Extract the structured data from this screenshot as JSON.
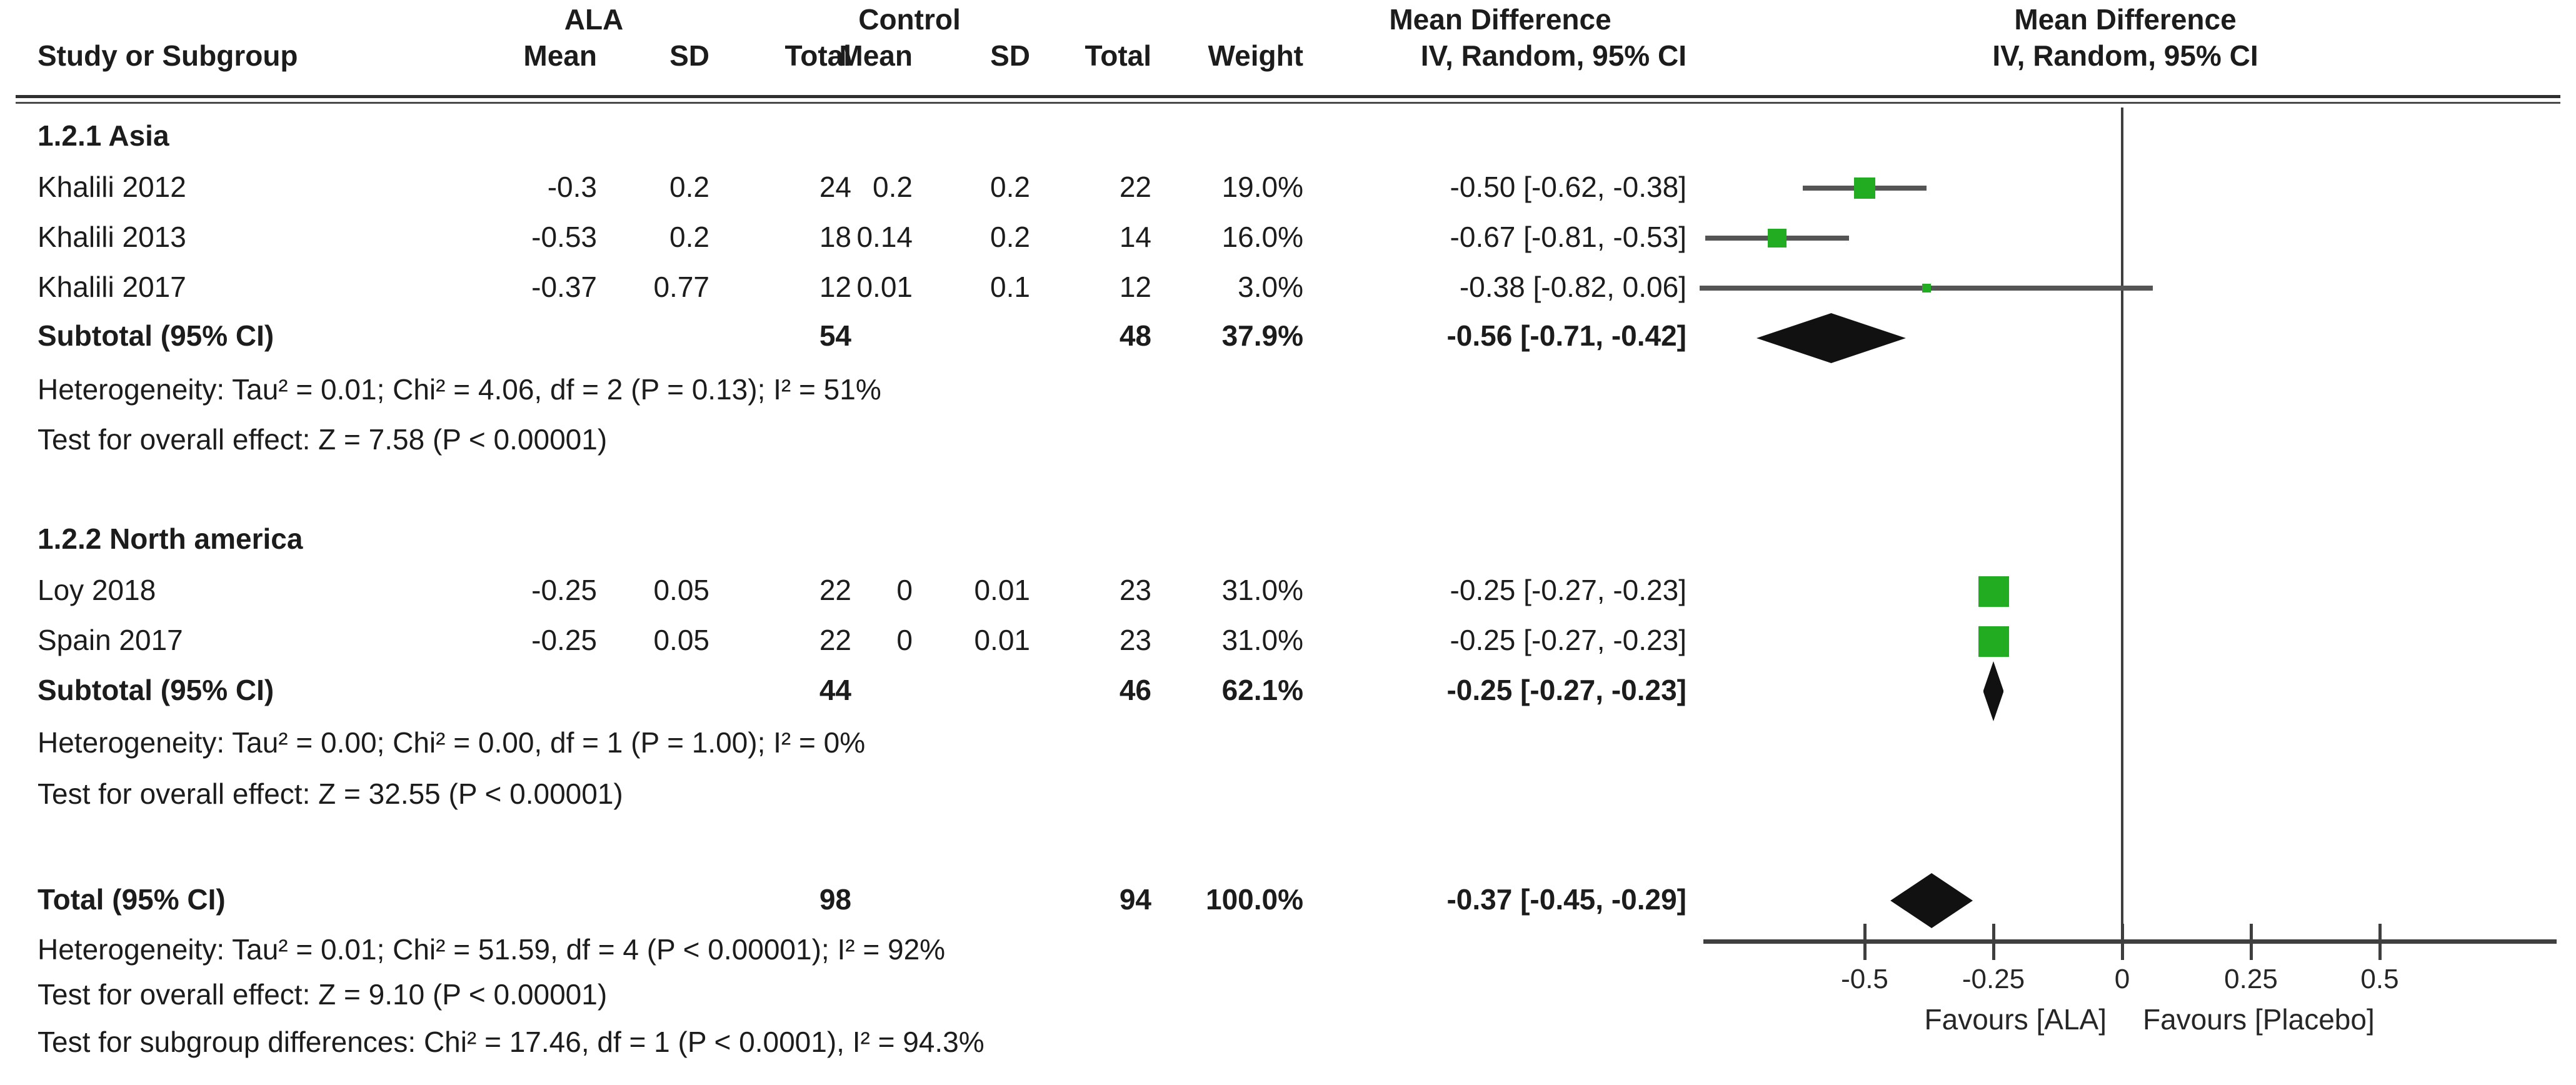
{
  "group_headers": {
    "ala": "ALA",
    "control": "Control",
    "md_left": "Mean Difference",
    "md_right": "Mean Difference"
  },
  "labels": {
    "study_col": "Study or Subgroup",
    "mean": "Mean",
    "sd": "SD",
    "total": "Total",
    "weight": "Weight",
    "iv": "IV, Random, 95% CI"
  },
  "sections": [
    {
      "title": "1.2.1 Asia",
      "rows": [
        {
          "study": "Khalili 2012",
          "m1": "-0.3",
          "sd1": "0.2",
          "n1": "24",
          "m2": "0.2",
          "sd2": "0.2",
          "n2": "22",
          "w": "19.0%",
          "ci": "-0.50 [-0.62, -0.38]"
        },
        {
          "study": "Khalili 2013",
          "m1": "-0.53",
          "sd1": "0.2",
          "n1": "18",
          "m2": "0.14",
          "sd2": "0.2",
          "n2": "14",
          "w": "16.0%",
          "ci": "-0.67 [-0.81, -0.53]"
        },
        {
          "study": "Khalili 2017",
          "m1": "-0.37",
          "sd1": "0.77",
          "n1": "12",
          "m2": "0.01",
          "sd2": "0.1",
          "n2": "12",
          "w": "3.0%",
          "ci": "-0.38 [-0.82, 0.06]"
        }
      ],
      "subtotal": {
        "label": "Subtotal (95% CI)",
        "n1": "54",
        "n2": "48",
        "w": "37.9%",
        "ci": "-0.56 [-0.71, -0.42]"
      },
      "heterogeneity": "Heterogeneity: Tau² = 0.01; Chi² = 4.06, df = 2 (P = 0.13); I² = 51%",
      "overall": "Test for overall effect: Z = 7.58 (P < 0.00001)"
    },
    {
      "title": "1.2.2 North america",
      "rows": [
        {
          "study": "Loy 2018",
          "m1": "-0.25",
          "sd1": "0.05",
          "n1": "22",
          "m2": "0",
          "sd2": "0.01",
          "n2": "23",
          "w": "31.0%",
          "ci": "-0.25 [-0.27, -0.23]"
        },
        {
          "study": "Spain 2017",
          "m1": "-0.25",
          "sd1": "0.05",
          "n1": "22",
          "m2": "0",
          "sd2": "0.01",
          "n2": "23",
          "w": "31.0%",
          "ci": "-0.25 [-0.27, -0.23]"
        }
      ],
      "subtotal": {
        "label": "Subtotal (95% CI)",
        "n1": "44",
        "n2": "46",
        "w": "62.1%",
        "ci": "-0.25 [-0.27, -0.23]"
      },
      "heterogeneity": "Heterogeneity: Tau² = 0.00; Chi² = 0.00, df = 1 (P = 1.00); I² = 0%",
      "overall": "Test for overall effect: Z = 32.55 (P < 0.00001)"
    }
  ],
  "total_row": {
    "label": "Total (95% CI)",
    "n1": "98",
    "n2": "94",
    "w": "100.0%",
    "ci": "-0.37 [-0.45, -0.29]"
  },
  "footer": {
    "heterogeneity": "Heterogeneity: Tau² = 0.01; Chi² = 51.59, df = 4 (P < 0.00001); I² = 92%",
    "overall": "Test for overall effect: Z = 9.10 (P < 0.00001)",
    "subgroup": "Test for subgroup differences: Chi² = 17.46, df = 1 (P < 0.0001), I² = 94.3%"
  },
  "axis": {
    "tick_labels": [
      "-0.5",
      "-0.25",
      "0",
      "0.25",
      "0.5"
    ],
    "favours_left": "Favours [ALA]",
    "favours_right": "Favours [Placebo]"
  },
  "colors": {
    "marker_green": "#22ac22",
    "diamond": "#111111",
    "ci_line": "#555555",
    "axis": "#3f3f3f"
  },
  "chart_data": {
    "type": "scatter",
    "subtype": "forest-plot",
    "effect_measure": "Mean Difference, IV, Random, 95% CI",
    "xlim": [
      -0.85,
      0.87
    ],
    "zero_line": 0,
    "axis_ticks": [
      -0.5,
      -0.25,
      0,
      0.25,
      0.5
    ],
    "points": [
      {
        "row": "k2012",
        "label": "Khalili 2012",
        "est": -0.5,
        "lo": -0.62,
        "hi": -0.38,
        "weight_pct": 19.0
      },
      {
        "row": "k2013",
        "label": "Khalili 2013",
        "est": -0.67,
        "lo": -0.81,
        "hi": -0.53,
        "weight_pct": 16.0
      },
      {
        "row": "k2017",
        "label": "Khalili 2017",
        "est": -0.38,
        "lo": -0.82,
        "hi": 0.06,
        "weight_pct": 3.0
      },
      {
        "row": "loy",
        "label": "Loy 2018",
        "est": -0.25,
        "lo": -0.27,
        "hi": -0.23,
        "weight_pct": 31.0
      },
      {
        "row": "spain",
        "label": "Spain 2017",
        "est": -0.25,
        "lo": -0.27,
        "hi": -0.23,
        "weight_pct": 31.0
      }
    ],
    "diamonds": [
      {
        "row": "sub_asia",
        "label": "Subtotal Asia (95% CI)",
        "est": -0.56,
        "lo": -0.71,
        "hi": -0.42
      },
      {
        "row": "sub_na",
        "label": "Subtotal North america (95% CI)",
        "est": -0.25,
        "lo": -0.27,
        "hi": -0.23
      },
      {
        "row": "total",
        "label": "Total (95% CI)",
        "est": -0.37,
        "lo": -0.45,
        "hi": -0.29
      }
    ],
    "favours_left": "Favours [ALA]",
    "favours_right": "Favours [Placebo]"
  }
}
